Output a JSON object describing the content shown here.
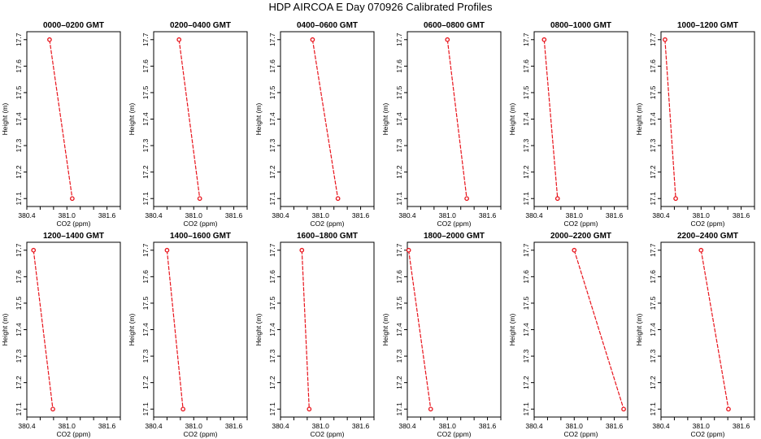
{
  "title": "HDP AIRCOA E  Day 070926  Calibrated Profiles",
  "colors": {
    "series": "#e8131b",
    "axis": "#000000",
    "background": "#ffffff"
  },
  "chart_data": [
    {
      "type": "line",
      "title": "0000–0200 GMT",
      "xlabel": "CO2 (ppm)",
      "ylabel": "Height (m)",
      "xlim": [
        380.4,
        381.8
      ],
      "ylim": [
        17.07,
        17.73
      ],
      "xticks": [
        "380.4",
        "381.0",
        "381.6"
      ],
      "yticks": [
        "17.1",
        "17.2",
        "17.3",
        "17.4",
        "17.5",
        "17.6",
        "17.7"
      ],
      "x": [
        380.74,
        381.08
      ],
      "y": [
        17.7,
        17.1
      ]
    },
    {
      "type": "line",
      "title": "0200–0400 GMT",
      "xlabel": "CO2 (ppm)",
      "ylabel": "Height (m)",
      "xlim": [
        380.4,
        381.8
      ],
      "ylim": [
        17.07,
        17.73
      ],
      "xticks": [
        "380.4",
        "381.0",
        "381.6"
      ],
      "yticks": [
        "17.1",
        "17.2",
        "17.3",
        "17.4",
        "17.5",
        "17.6",
        "17.7"
      ],
      "x": [
        380.78,
        381.09
      ],
      "y": [
        17.7,
        17.1
      ]
    },
    {
      "type": "line",
      "title": "0400–0600 GMT",
      "xlabel": "CO2 (ppm)",
      "ylabel": "Height (m)",
      "xlim": [
        380.4,
        381.8
      ],
      "ylim": [
        17.07,
        17.73
      ],
      "xticks": [
        "380.4",
        "381.0",
        "381.6"
      ],
      "yticks": [
        "17.1",
        "17.2",
        "17.3",
        "17.4",
        "17.5",
        "17.6",
        "17.7"
      ],
      "x": [
        380.88,
        381.26
      ],
      "y": [
        17.7,
        17.1
      ]
    },
    {
      "type": "line",
      "title": "0600–0800 GMT",
      "xlabel": "CO2 (ppm)",
      "ylabel": "Height (m)",
      "xlim": [
        380.4,
        381.8
      ],
      "ylim": [
        17.07,
        17.73
      ],
      "xticks": [
        "380.4",
        "381.0",
        "381.6"
      ],
      "yticks": [
        "17.1",
        "17.2",
        "17.3",
        "17.4",
        "17.5",
        "17.6",
        "17.7"
      ],
      "x": [
        381.0,
        381.29
      ],
      "y": [
        17.7,
        17.1
      ]
    },
    {
      "type": "line",
      "title": "0800–1000 GMT",
      "xlabel": "CO2 (ppm)",
      "ylabel": "Height (m)",
      "xlim": [
        380.4,
        381.8
      ],
      "ylim": [
        17.07,
        17.73
      ],
      "xticks": [
        "380.4",
        "381.0",
        "381.6"
      ],
      "yticks": [
        "17.1",
        "17.2",
        "17.3",
        "17.4",
        "17.5",
        "17.6",
        "17.7"
      ],
      "x": [
        380.55,
        380.75
      ],
      "y": [
        17.7,
        17.1
      ]
    },
    {
      "type": "line",
      "title": "1000–1200 GMT",
      "xlabel": "CO2 (ppm)",
      "ylabel": "Height (m)",
      "xlim": [
        380.4,
        381.8
      ],
      "ylim": [
        17.07,
        17.73
      ],
      "xticks": [
        "380.4",
        "381.0",
        "381.6"
      ],
      "yticks": [
        "17.1",
        "17.2",
        "17.3",
        "17.4",
        "17.5",
        "17.6",
        "17.7"
      ],
      "x": [
        380.46,
        380.62
      ],
      "y": [
        17.7,
        17.1
      ]
    },
    {
      "type": "line",
      "title": "1200–1400 GMT",
      "xlabel": "CO2 (ppm)",
      "ylabel": "Height (m)",
      "xlim": [
        380.4,
        381.8
      ],
      "ylim": [
        17.07,
        17.73
      ],
      "xticks": [
        "380.4",
        "381.0",
        "381.6"
      ],
      "yticks": [
        "17.1",
        "17.2",
        "17.3",
        "17.4",
        "17.5",
        "17.6",
        "17.7"
      ],
      "x": [
        380.5,
        380.79
      ],
      "y": [
        17.7,
        17.1
      ]
    },
    {
      "type": "line",
      "title": "1400–1600 GMT",
      "xlabel": "CO2 (ppm)",
      "ylabel": "Height (m)",
      "xlim": [
        380.4,
        381.8
      ],
      "ylim": [
        17.07,
        17.73
      ],
      "xticks": [
        "380.4",
        "381.0",
        "381.6"
      ],
      "yticks": [
        "17.1",
        "17.2",
        "17.3",
        "17.4",
        "17.5",
        "17.6",
        "17.7"
      ],
      "x": [
        380.6,
        380.84
      ],
      "y": [
        17.7,
        17.1
      ]
    },
    {
      "type": "line",
      "title": "1600–1800 GMT",
      "xlabel": "CO2 (ppm)",
      "ylabel": "Height (m)",
      "xlim": [
        380.4,
        381.8
      ],
      "ylim": [
        17.07,
        17.73
      ],
      "xticks": [
        "380.4",
        "381.0",
        "381.6"
      ],
      "yticks": [
        "17.1",
        "17.2",
        "17.3",
        "17.4",
        "17.5",
        "17.6",
        "17.7"
      ],
      "x": [
        380.72,
        380.83
      ],
      "y": [
        17.7,
        17.1
      ]
    },
    {
      "type": "line",
      "title": "1800–2000 GMT",
      "xlabel": "CO2 (ppm)",
      "ylabel": "Height (m)",
      "xlim": [
        380.4,
        381.8
      ],
      "ylim": [
        17.07,
        17.73
      ],
      "xticks": [
        "380.4",
        "381.0",
        "381.6"
      ],
      "yticks": [
        "17.1",
        "17.2",
        "17.3",
        "17.4",
        "17.5",
        "17.6",
        "17.7"
      ],
      "x": [
        380.42,
        380.75
      ],
      "y": [
        17.7,
        17.1
      ]
    },
    {
      "type": "line",
      "title": "2000–2200 GMT",
      "xlabel": "CO2 (ppm)",
      "ylabel": "Height (m)",
      "xlim": [
        380.4,
        381.8
      ],
      "ylim": [
        17.07,
        17.73
      ],
      "xticks": [
        "380.4",
        "381.0",
        "381.6"
      ],
      "yticks": [
        "17.1",
        "17.2",
        "17.3",
        "17.4",
        "17.5",
        "17.6",
        "17.7"
      ],
      "x": [
        381.0,
        381.74
      ],
      "y": [
        17.7,
        17.1
      ]
    },
    {
      "type": "line",
      "title": "2200–2400 GMT",
      "xlabel": "CO2 (ppm)",
      "ylabel": "Height (m)",
      "xlim": [
        380.4,
        381.8
      ],
      "ylim": [
        17.07,
        17.73
      ],
      "xticks": [
        "380.4",
        "381.0",
        "381.6"
      ],
      "yticks": [
        "17.1",
        "17.2",
        "17.3",
        "17.4",
        "17.5",
        "17.6",
        "17.7"
      ],
      "x": [
        381.0,
        381.41
      ],
      "y": [
        17.7,
        17.1
      ]
    }
  ]
}
